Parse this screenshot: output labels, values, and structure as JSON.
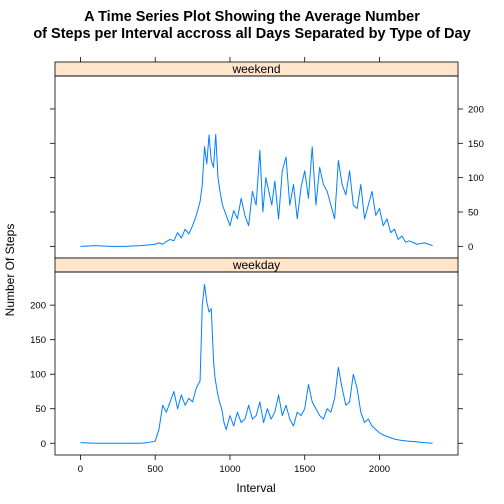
{
  "chart_data": {
    "type": "line",
    "title_line1": "A Time Series Plot Showing the Average Number",
    "title_line2": "of Steps per Interval accross all Days Separated by Type of Day",
    "xlabel": "Interval",
    "ylabel": "Number Of Steps",
    "xlim": [
      -170,
      2525
    ],
    "ylim": [
      -17,
      248
    ],
    "x_ticks": [
      "0",
      "500",
      "1000",
      "1500",
      "2000"
    ],
    "y_ticks": [
      "0",
      "50",
      "100",
      "150",
      "200"
    ],
    "strip_color": "#ffe5cc",
    "line_color": "#0080ff",
    "panels": [
      {
        "label": "weekend",
        "y_axis_side": "right",
        "x": [
          0,
          100,
          200,
          300,
          400,
          450,
          500,
          525,
          550,
          575,
          600,
          625,
          650,
          675,
          700,
          725,
          750,
          775,
          800,
          815,
          830,
          845,
          860,
          875,
          890,
          905,
          920,
          935,
          950,
          975,
          1000,
          1025,
          1050,
          1075,
          1100,
          1125,
          1150,
          1175,
          1200,
          1220,
          1240,
          1260,
          1280,
          1300,
          1325,
          1350,
          1375,
          1400,
          1425,
          1450,
          1475,
          1500,
          1525,
          1550,
          1575,
          1600,
          1625,
          1650,
          1675,
          1700,
          1725,
          1750,
          1775,
          1800,
          1825,
          1850,
          1875,
          1900,
          1925,
          1950,
          1975,
          2000,
          2025,
          2050,
          2075,
          2100,
          2125,
          2150,
          2175,
          2200,
          2250,
          2300,
          2355
        ],
        "values": [
          0,
          1,
          0,
          0,
          1,
          2,
          3,
          5,
          3,
          7,
          10,
          8,
          20,
          12,
          25,
          18,
          30,
          45,
          65,
          90,
          145,
          120,
          162,
          125,
          115,
          163,
          100,
          78,
          60,
          45,
          30,
          52,
          40,
          70,
          45,
          30,
          80,
          60,
          140,
          50,
          100,
          80,
          60,
          95,
          40,
          110,
          130,
          60,
          90,
          40,
          85,
          110,
          70,
          145,
          60,
          115,
          90,
          80,
          60,
          40,
          125,
          90,
          75,
          110,
          60,
          55,
          90,
          40,
          60,
          80,
          45,
          55,
          30,
          40,
          20,
          25,
          10,
          15,
          6,
          8,
          3,
          5,
          1
        ]
      },
      {
        "label": "weekday",
        "y_axis_side": "left",
        "x": [
          0,
          100,
          200,
          300,
          400,
          450,
          500,
          525,
          550,
          575,
          600,
          625,
          650,
          675,
          700,
          725,
          750,
          775,
          800,
          815,
          830,
          845,
          860,
          875,
          890,
          900,
          915,
          930,
          945,
          960,
          975,
          1000,
          1025,
          1050,
          1075,
          1100,
          1125,
          1150,
          1175,
          1200,
          1225,
          1250,
          1275,
          1300,
          1325,
          1350,
          1375,
          1400,
          1425,
          1450,
          1475,
          1500,
          1525,
          1550,
          1575,
          1600,
          1625,
          1650,
          1675,
          1700,
          1725,
          1750,
          1775,
          1800,
          1825,
          1850,
          1875,
          1900,
          1925,
          1950,
          1975,
          2000,
          2025,
          2050,
          2075,
          2100,
          2150,
          2200,
          2250,
          2300,
          2355
        ],
        "values": [
          1,
          0,
          0,
          0,
          0,
          1,
          3,
          20,
          55,
          45,
          60,
          75,
          50,
          70,
          55,
          65,
          60,
          80,
          90,
          200,
          230,
          205,
          190,
          195,
          120,
          95,
          75,
          60,
          50,
          30,
          20,
          40,
          25,
          45,
          30,
          35,
          55,
          35,
          40,
          60,
          30,
          50,
          35,
          45,
          70,
          40,
          55,
          35,
          25,
          45,
          40,
          50,
          85,
          60,
          50,
          40,
          35,
          50,
          45,
          65,
          110,
          80,
          55,
          60,
          100,
          80,
          45,
          30,
          35,
          25,
          20,
          15,
          12,
          10,
          8,
          6,
          4,
          3,
          2,
          1,
          0
        ]
      }
    ]
  }
}
